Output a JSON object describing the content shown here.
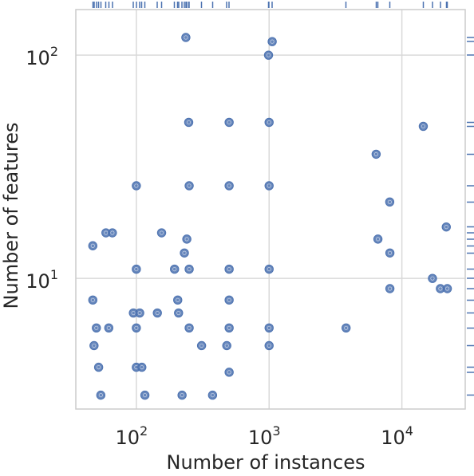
{
  "chart_data": {
    "type": "scatter",
    "title": "",
    "xlabel": "Number of instances",
    "ylabel": "Number of features",
    "x_scale": "log",
    "y_scale": "log",
    "xlim": [
      35,
      30000
    ],
    "ylim": [
      2.6,
      160
    ],
    "grid": true,
    "rug": [
      "top",
      "right"
    ],
    "marker_color": "#4c72b0",
    "x_ticks": [
      {
        "value": 100,
        "base": "10",
        "exp": "2"
      },
      {
        "value": 1000,
        "base": "10",
        "exp": "3"
      },
      {
        "value": 10000,
        "base": "10",
        "exp": "4"
      }
    ],
    "y_ticks": [
      {
        "value": 10,
        "base": "10",
        "exp": "1"
      },
      {
        "value": 100,
        "base": "10",
        "exp": "2"
      }
    ],
    "points": [
      [
        47,
        14
      ],
      [
        47,
        8
      ],
      [
        48,
        5
      ],
      [
        50,
        6
      ],
      [
        52,
        4
      ],
      [
        54,
        3
      ],
      [
        59,
        16
      ],
      [
        62,
        6
      ],
      [
        66,
        16
      ],
      [
        95,
        7
      ],
      [
        100,
        26
      ],
      [
        100,
        11
      ],
      [
        100,
        6
      ],
      [
        100,
        4
      ],
      [
        106,
        7
      ],
      [
        110,
        4
      ],
      [
        116,
        3
      ],
      [
        144,
        7
      ],
      [
        155,
        16
      ],
      [
        194,
        11
      ],
      [
        205,
        8
      ],
      [
        208,
        7
      ],
      [
        221,
        3
      ],
      [
        230,
        13
      ],
      [
        236,
        120
      ],
      [
        240,
        15
      ],
      [
        248,
        50
      ],
      [
        250,
        26
      ],
      [
        250,
        11
      ],
      [
        250,
        6
      ],
      [
        310,
        5
      ],
      [
        375,
        3
      ],
      [
        480,
        5
      ],
      [
        500,
        50
      ],
      [
        500,
        26
      ],
      [
        500,
        11
      ],
      [
        500,
        8
      ],
      [
        500,
        6
      ],
      [
        500,
        3.8
      ],
      [
        990,
        100
      ],
      [
        1000,
        50
      ],
      [
        1000,
        26
      ],
      [
        1000,
        11
      ],
      [
        1000,
        6
      ],
      [
        1000,
        5
      ],
      [
        1055,
        115
      ],
      [
        3800,
        6
      ],
      [
        6400,
        36
      ],
      [
        6600,
        15
      ],
      [
        8100,
        22
      ],
      [
        8124,
        13
      ],
      [
        8124,
        9
      ],
      [
        14500,
        48
      ],
      [
        17000,
        10
      ],
      [
        19500,
        9
      ],
      [
        21600,
        17
      ],
      [
        22000,
        9
      ]
    ]
  }
}
